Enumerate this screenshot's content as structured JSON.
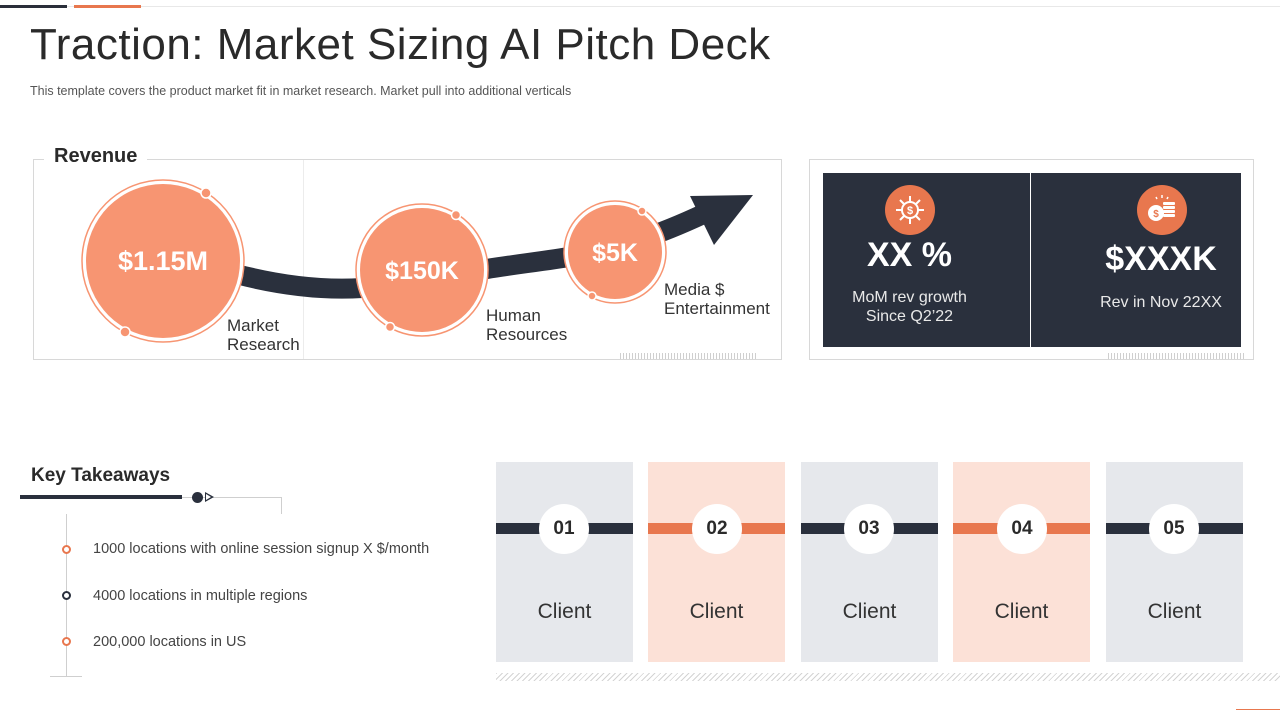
{
  "header": {
    "title": "Traction: Market Sizing AI Pitch Deck",
    "subtitle": "This template covers the product market fit in market research. Market pull into additional verticals"
  },
  "revenue": {
    "label": "Revenue",
    "items": [
      {
        "value": "$1.15M",
        "caption_line1": "Market",
        "caption_line2": "Research"
      },
      {
        "value": "$150K",
        "caption_line1": "Human",
        "caption_line2": "Resources"
      },
      {
        "value": "$5K",
        "caption_line1": "Media $",
        "caption_line2": "Entertainment"
      }
    ]
  },
  "metrics": [
    {
      "icon": "dollar-network-icon",
      "value": "XX %",
      "caption_line1": "MoM rev growth",
      "caption_line2": "Since Q2’22"
    },
    {
      "icon": "coins-icon",
      "value": "$XXXK",
      "caption_line1": "Rev in Nov 22XX",
      "caption_line2": ""
    }
  ],
  "takeaways": {
    "title": "Key Takeaways",
    "items": [
      "1000 locations  with online session signup X $/month",
      "4000 locations in multiple regions",
      "200,000 locations in US"
    ]
  },
  "clients": [
    {
      "number": "01",
      "label": "Client"
    },
    {
      "number": "02",
      "label": "Client"
    },
    {
      "number": "03",
      "label": "Client"
    },
    {
      "number": "04",
      "label": "Client"
    },
    {
      "number": "05",
      "label": "Client"
    }
  ],
  "colors": {
    "accent": "#e8774e",
    "bubble": "#f79572",
    "dark": "#2a303d",
    "peach": "#fce1d7",
    "grey": "#e6e8ec"
  }
}
